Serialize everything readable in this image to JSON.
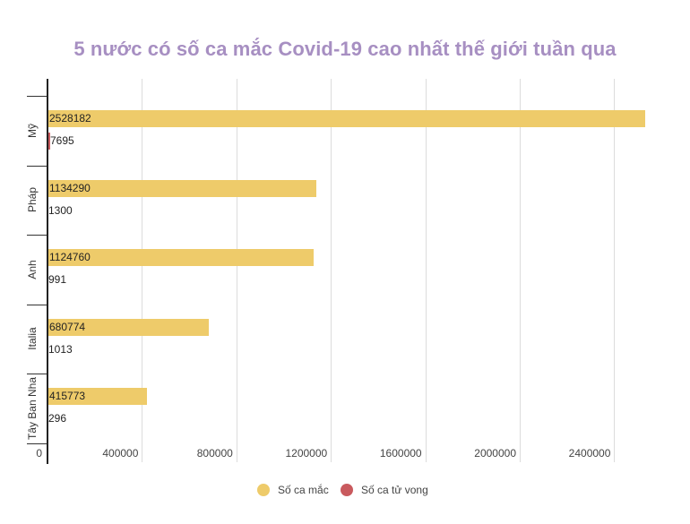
{
  "chart_data": {
    "type": "bar",
    "orientation": "horizontal",
    "title": "5 nước có số ca mắc Covid-19 cao nhất thế giới tuần qua",
    "xlabel": "",
    "ylabel": "",
    "categories": [
      "Mỹ",
      "Pháp",
      "Anh",
      "Italia",
      "Tây Ban Nha"
    ],
    "series": [
      {
        "name": "Số ca mắc",
        "color": "#eecb6a",
        "values": [
          2528182,
          1134290,
          1124760,
          680774,
          415773
        ]
      },
      {
        "name": "Số ca tử vong",
        "color": "#c95a5e",
        "values": [
          7695,
          1300,
          991,
          1013,
          296
        ]
      }
    ],
    "xlim": [
      0,
      2600000
    ],
    "xticks": [
      0,
      400000,
      800000,
      1200000,
      1600000,
      2000000,
      2400000
    ],
    "xtick_labels": [
      "0",
      "400000",
      "800000",
      "1200000",
      "1600000",
      "2000000",
      "2400000"
    ],
    "grid": true,
    "legend_position": "bottom",
    "data_labels": true
  },
  "title": "5 nước có số ca mắc Covid-19 cao nhất thế giới tuần qua",
  "colors": {
    "title": "#a78fc2",
    "cases": "#eecb6a",
    "deaths": "#c95a5e",
    "grid": "#dcdcdc"
  },
  "legend": [
    {
      "label": "Số ca mắc",
      "color": "#eecb6a"
    },
    {
      "label": "Số ca tử vong",
      "color": "#c95a5e"
    }
  ]
}
